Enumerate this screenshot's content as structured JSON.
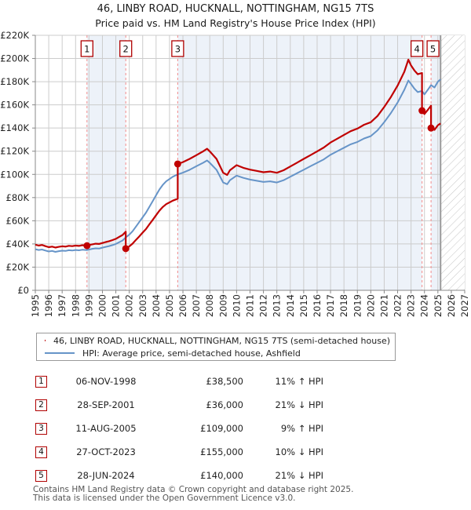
{
  "title": {
    "line1": "46, LINBY ROAD, HUCKNALL, NOTTINGHAM, NG15 7TS",
    "line2": "Price paid vs. HM Land Registry's House Price Index (HPI)"
  },
  "chart_data": {
    "type": "line",
    "title": "Price paid vs. HM Land Registry's House Price Index (HPI)",
    "xlabel": "",
    "ylabel": "",
    "unit": "GBP_thousands",
    "x_ticks": [
      1995,
      1996,
      1997,
      1998,
      1999,
      2000,
      2001,
      2002,
      2003,
      2004,
      2005,
      2006,
      2007,
      2008,
      2009,
      2010,
      2011,
      2012,
      2013,
      2014,
      2015,
      2016,
      2017,
      2018,
      2019,
      2020,
      2021,
      2022,
      2023,
      2024,
      2025,
      2026,
      2027
    ],
    "y_ticks": [
      0,
      20,
      40,
      60,
      80,
      100,
      120,
      140,
      160,
      180,
      200,
      220
    ],
    "y_tick_labels": [
      "£0",
      "£20K",
      "£40K",
      "£60K",
      "£80K",
      "£100K",
      "£120K",
      "£140K",
      "£160K",
      "£180K",
      "£200K",
      "£220K"
    ],
    "x_range": [
      1995,
      2027
    ],
    "y_range": [
      0,
      220
    ],
    "grid": true,
    "legend_position": "below",
    "data_end_x": 2025.2,
    "hatch_region": [
      2025.2,
      2027
    ],
    "shaded_periods": [
      [
        1998.85,
        2001.74
      ],
      [
        2005.61,
        2023.82
      ],
      [
        2024.49,
        2025.2
      ]
    ],
    "colors": {
      "property_line": "#c00000",
      "hpi_line": "#6694c8",
      "marker_dashed_line": "#f28b8b",
      "shaded_period": "#edf2f9",
      "grid": "#cccccc",
      "axis": "#888888",
      "hatch": "#c4c4c4",
      "number_box_border": "#b00000"
    },
    "series": [
      {
        "name": "46, LINBY ROAD, HUCKNALL, NOTTINGHAM, NG15 7TS (semi-detached house)",
        "color": "#c00000",
        "points": [
          [
            1995,
            39.4
          ],
          [
            1995.25,
            38.6
          ],
          [
            1995.5,
            39.1
          ],
          [
            1995.75,
            38.1
          ],
          [
            1996,
            37.2
          ],
          [
            1996.25,
            37.7
          ],
          [
            1996.5,
            36.9
          ],
          [
            1996.75,
            37.5
          ],
          [
            1997,
            38
          ],
          [
            1997.25,
            37.7
          ],
          [
            1997.5,
            38.4
          ],
          [
            1997.75,
            38.1
          ],
          [
            1998,
            38.6
          ],
          [
            1998.25,
            38.3
          ],
          [
            1998.5,
            38.9
          ],
          [
            1998.85,
            38.5
          ],
          [
            1999,
            39.1
          ],
          [
            1999.25,
            39.7
          ],
          [
            1999.5,
            40.2
          ],
          [
            1999.75,
            40
          ],
          [
            2000,
            40.8
          ],
          [
            2000.25,
            41.6
          ],
          [
            2000.5,
            42.4
          ],
          [
            2000.75,
            43.3
          ],
          [
            2001,
            44.4
          ],
          [
            2001.25,
            46.1
          ],
          [
            2001.5,
            47.7
          ],
          [
            2001.74,
            50.6
          ],
          [
            2001.74,
            36
          ],
          [
            2002,
            37.9
          ],
          [
            2002.25,
            40.3
          ],
          [
            2002.5,
            43.5
          ],
          [
            2002.75,
            46.6
          ],
          [
            2003,
            49.8
          ],
          [
            2003.25,
            52.9
          ],
          [
            2003.5,
            56.9
          ],
          [
            2003.75,
            60.8
          ],
          [
            2004,
            64.8
          ],
          [
            2004.25,
            68.7
          ],
          [
            2004.5,
            71.9
          ],
          [
            2004.75,
            74.3
          ],
          [
            2005,
            75.8
          ],
          [
            2005.25,
            77.4
          ],
          [
            2005.61,
            79
          ],
          [
            2005.61,
            109
          ],
          [
            2006,
            110.6
          ],
          [
            2006.5,
            113.4
          ],
          [
            2007,
            116.6
          ],
          [
            2007.5,
            119.9
          ],
          [
            2007.8,
            122.1
          ],
          [
            2008,
            119.9
          ],
          [
            2008.5,
            113.4
          ],
          [
            2009,
            101.4
          ],
          [
            2009.3,
            99.5
          ],
          [
            2009.5,
            103.6
          ],
          [
            2010,
            108
          ],
          [
            2010.5,
            105.7
          ],
          [
            2011,
            104.1
          ],
          [
            2011.5,
            103
          ],
          [
            2012,
            101.9
          ],
          [
            2012.5,
            102.5
          ],
          [
            2013,
            101.4
          ],
          [
            2013.5,
            103.6
          ],
          [
            2014,
            106.8
          ],
          [
            2014.5,
            110.1
          ],
          [
            2015,
            113.4
          ],
          [
            2015.5,
            116.6
          ],
          [
            2016,
            119.9
          ],
          [
            2016.5,
            123.2
          ],
          [
            2017,
            127.5
          ],
          [
            2017.5,
            130.8
          ],
          [
            2018,
            134.1
          ],
          [
            2018.5,
            137.3
          ],
          [
            2019,
            139.5
          ],
          [
            2019.5,
            142.8
          ],
          [
            2020,
            145
          ],
          [
            2020.5,
            150.4
          ],
          [
            2021,
            158.1
          ],
          [
            2021.5,
            166.8
          ],
          [
            2022,
            176.6
          ],
          [
            2022.5,
            188.6
          ],
          [
            2022.8,
            199
          ],
          [
            2023,
            194
          ],
          [
            2023.25,
            189.7
          ],
          [
            2023.5,
            186.4
          ],
          [
            2023.82,
            187.5
          ],
          [
            2023.82,
            155
          ],
          [
            2024,
            152.1
          ],
          [
            2024.25,
            155.7
          ],
          [
            2024.49,
            159.3
          ],
          [
            2024.49,
            140
          ],
          [
            2024.75,
            138.4
          ],
          [
            2025,
            142.4
          ],
          [
            2025.2,
            144
          ]
        ]
      },
      {
        "name": "HPI: Average price, semi-detached house, Ashfield",
        "color": "#6694c8",
        "points": [
          [
            1995,
            35.5
          ],
          [
            1995.25,
            34.8
          ],
          [
            1995.5,
            35.2
          ],
          [
            1995.75,
            34.3
          ],
          [
            1996,
            33.5
          ],
          [
            1996.25,
            34
          ],
          [
            1996.5,
            33.2
          ],
          [
            1996.75,
            33.8
          ],
          [
            1997,
            34.2
          ],
          [
            1997.25,
            34
          ],
          [
            1997.5,
            34.6
          ],
          [
            1997.75,
            34.3
          ],
          [
            1998,
            34.8
          ],
          [
            1998.25,
            34.5
          ],
          [
            1998.5,
            35
          ],
          [
            1998.85,
            34.7
          ],
          [
            1999,
            35.2
          ],
          [
            1999.25,
            35.8
          ],
          [
            1999.5,
            36.2
          ],
          [
            1999.75,
            36
          ],
          [
            2000,
            36.8
          ],
          [
            2000.25,
            37.5
          ],
          [
            2000.5,
            38.2
          ],
          [
            2000.75,
            39
          ],
          [
            2001,
            40
          ],
          [
            2001.25,
            41.5
          ],
          [
            2001.5,
            43
          ],
          [
            2001.74,
            45.6
          ],
          [
            2002,
            48
          ],
          [
            2002.25,
            51
          ],
          [
            2002.5,
            55
          ],
          [
            2002.75,
            59
          ],
          [
            2003,
            63
          ],
          [
            2003.25,
            67
          ],
          [
            2003.5,
            72
          ],
          [
            2003.75,
            77
          ],
          [
            2004,
            82
          ],
          [
            2004.25,
            87
          ],
          [
            2004.5,
            91
          ],
          [
            2004.75,
            94
          ],
          [
            2005,
            96
          ],
          [
            2005.25,
            98
          ],
          [
            2005.61,
            100
          ],
          [
            2006,
            101.5
          ],
          [
            2006.5,
            104
          ],
          [
            2007,
            107
          ],
          [
            2007.5,
            110
          ],
          [
            2007.8,
            112
          ],
          [
            2008,
            110
          ],
          [
            2008.5,
            104
          ],
          [
            2009,
            93
          ],
          [
            2009.3,
            91.5
          ],
          [
            2009.5,
            95
          ],
          [
            2010,
            99
          ],
          [
            2010.5,
            97
          ],
          [
            2011,
            95.5
          ],
          [
            2011.5,
            94.5
          ],
          [
            2012,
            93.5
          ],
          [
            2012.5,
            94
          ],
          [
            2013,
            93
          ],
          [
            2013.5,
            95
          ],
          [
            2014,
            98
          ],
          [
            2014.5,
            101
          ],
          [
            2015,
            104
          ],
          [
            2015.5,
            107
          ],
          [
            2016,
            110
          ],
          [
            2016.5,
            113
          ],
          [
            2017,
            117
          ],
          [
            2017.5,
            120
          ],
          [
            2018,
            123
          ],
          [
            2018.5,
            126
          ],
          [
            2019,
            128
          ],
          [
            2019.5,
            131
          ],
          [
            2020,
            133
          ],
          [
            2020.5,
            138
          ],
          [
            2021,
            145
          ],
          [
            2021.5,
            153
          ],
          [
            2022,
            162
          ],
          [
            2022.5,
            173
          ],
          [
            2022.8,
            181
          ],
          [
            2023,
            178
          ],
          [
            2023.25,
            174
          ],
          [
            2023.5,
            171
          ],
          [
            2023.82,
            172
          ],
          [
            2024,
            169
          ],
          [
            2024.25,
            173
          ],
          [
            2024.49,
            177
          ],
          [
            2024.75,
            175
          ],
          [
            2025,
            180
          ],
          [
            2025.2,
            182
          ]
        ]
      }
    ],
    "markers": [
      {
        "n": "1",
        "x": 1998.85,
        "y": 38.5
      },
      {
        "n": "2",
        "x": 2001.74,
        "y": 36
      },
      {
        "n": "3",
        "x": 2005.61,
        "y": 109
      },
      {
        "n": "4",
        "x": 2023.82,
        "y": 155
      },
      {
        "n": "5",
        "x": 2024.49,
        "y": 140
      }
    ]
  },
  "legend": {
    "items": [
      {
        "label": "46, LINBY ROAD, HUCKNALL, NOTTINGHAM, NG15 7TS (semi-detached house)",
        "color": "#c00000"
      },
      {
        "label": "HPI: Average price, semi-detached house, Ashfield",
        "color": "#6694c8"
      }
    ]
  },
  "table": {
    "rows": [
      {
        "num": "1",
        "date": "06-NOV-1998",
        "price": "£38,500",
        "hpi": "11% ↑ HPI"
      },
      {
        "num": "2",
        "date": "28-SEP-2001",
        "price": "£36,000",
        "hpi": "21% ↓ HPI"
      },
      {
        "num": "3",
        "date": "11-AUG-2005",
        "price": "£109,000",
        "hpi": "9% ↑ HPI"
      },
      {
        "num": "4",
        "date": "27-OCT-2023",
        "price": "£155,000",
        "hpi": "10% ↓ HPI"
      },
      {
        "num": "5",
        "date": "28-JUN-2024",
        "price": "£140,000",
        "hpi": "21% ↓ HPI"
      }
    ]
  },
  "footer": {
    "line1": "Contains HM Land Registry data © Crown copyright and database right 2025.",
    "line2": "This data is licensed under the Open Government Licence v3.0."
  }
}
